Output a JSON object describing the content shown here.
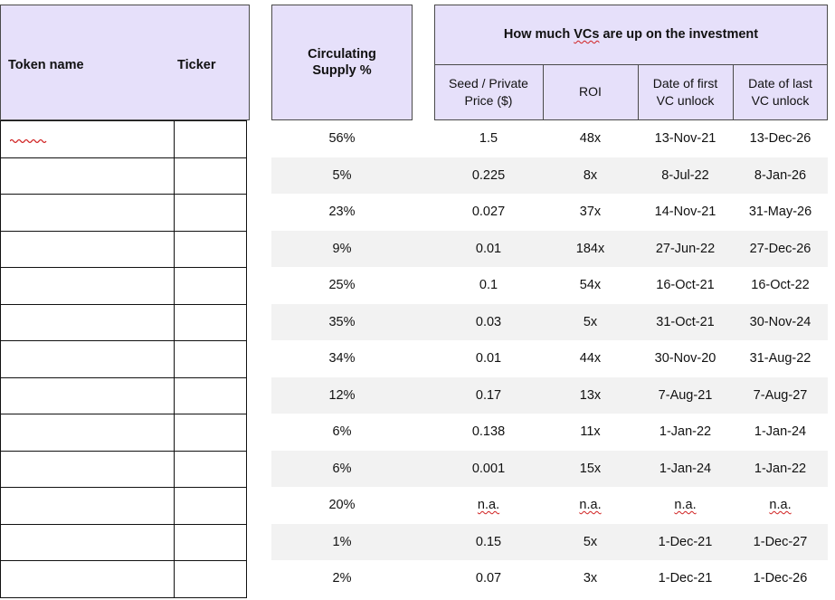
{
  "headers": {
    "token_name": "Token name",
    "ticker": "Ticker",
    "circulating_line1": "Circulating",
    "circulating_line2": "Supply %",
    "group_title_pre": "How much ",
    "group_title_vcs": "VCs",
    "group_title_post": " are up on the investment",
    "seed_line1": "Seed / Private",
    "seed_line2": "Price ($)",
    "roi": "ROI",
    "first_line1": "Date of first",
    "first_line2": "VC unlock",
    "last_line1": "Date of last",
    "last_line2": "VC unlock"
  },
  "rows": [
    {
      "supply": "56%",
      "seed": "1.5",
      "roi": "48x",
      "first": "13-Nov-21",
      "last": "13-Dec-26"
    },
    {
      "supply": "5%",
      "seed": "0.225",
      "roi": "8x",
      "first": "8-Jul-22",
      "last": "8-Jan-26"
    },
    {
      "supply": "23%",
      "seed": "0.027",
      "roi": "37x",
      "first": "14-Nov-21",
      "last": "31-May-26"
    },
    {
      "supply": "9%",
      "seed": "0.01",
      "roi": "184x",
      "first": "27-Jun-22",
      "last": "27-Dec-26"
    },
    {
      "supply": "25%",
      "seed": "0.1",
      "roi": "54x",
      "first": "16-Oct-21",
      "last": "16-Oct-22"
    },
    {
      "supply": "35%",
      "seed": "0.03",
      "roi": "5x",
      "first": "31-Oct-21",
      "last": "30-Nov-24"
    },
    {
      "supply": "34%",
      "seed": "0.01",
      "roi": "44x",
      "first": "30-Nov-20",
      "last": "31-Aug-22"
    },
    {
      "supply": "12%",
      "seed": "0.17",
      "roi": "13x",
      "first": "7-Aug-21",
      "last": "7-Aug-27"
    },
    {
      "supply": "6%",
      "seed": "0.138",
      "roi": "11x",
      "first": "1-Jan-22",
      "last": "1-Jan-24"
    },
    {
      "supply": "6%",
      "seed": "0.001",
      "roi": "15x",
      "first": "1-Jan-24",
      "last": "1-Jan-22"
    },
    {
      "supply": "20%",
      "seed": "n.a.",
      "roi": "n.a.",
      "first": "n.a.",
      "last": "n.a."
    },
    {
      "supply": "1%",
      "seed": "0.15",
      "roi": "5x",
      "first": "1-Dec-21",
      "last": "1-Dec-27"
    },
    {
      "supply": "2%",
      "seed": "0.07",
      "roi": "3x",
      "first": "1-Dec-21",
      "last": "1-Dec-26"
    }
  ]
}
